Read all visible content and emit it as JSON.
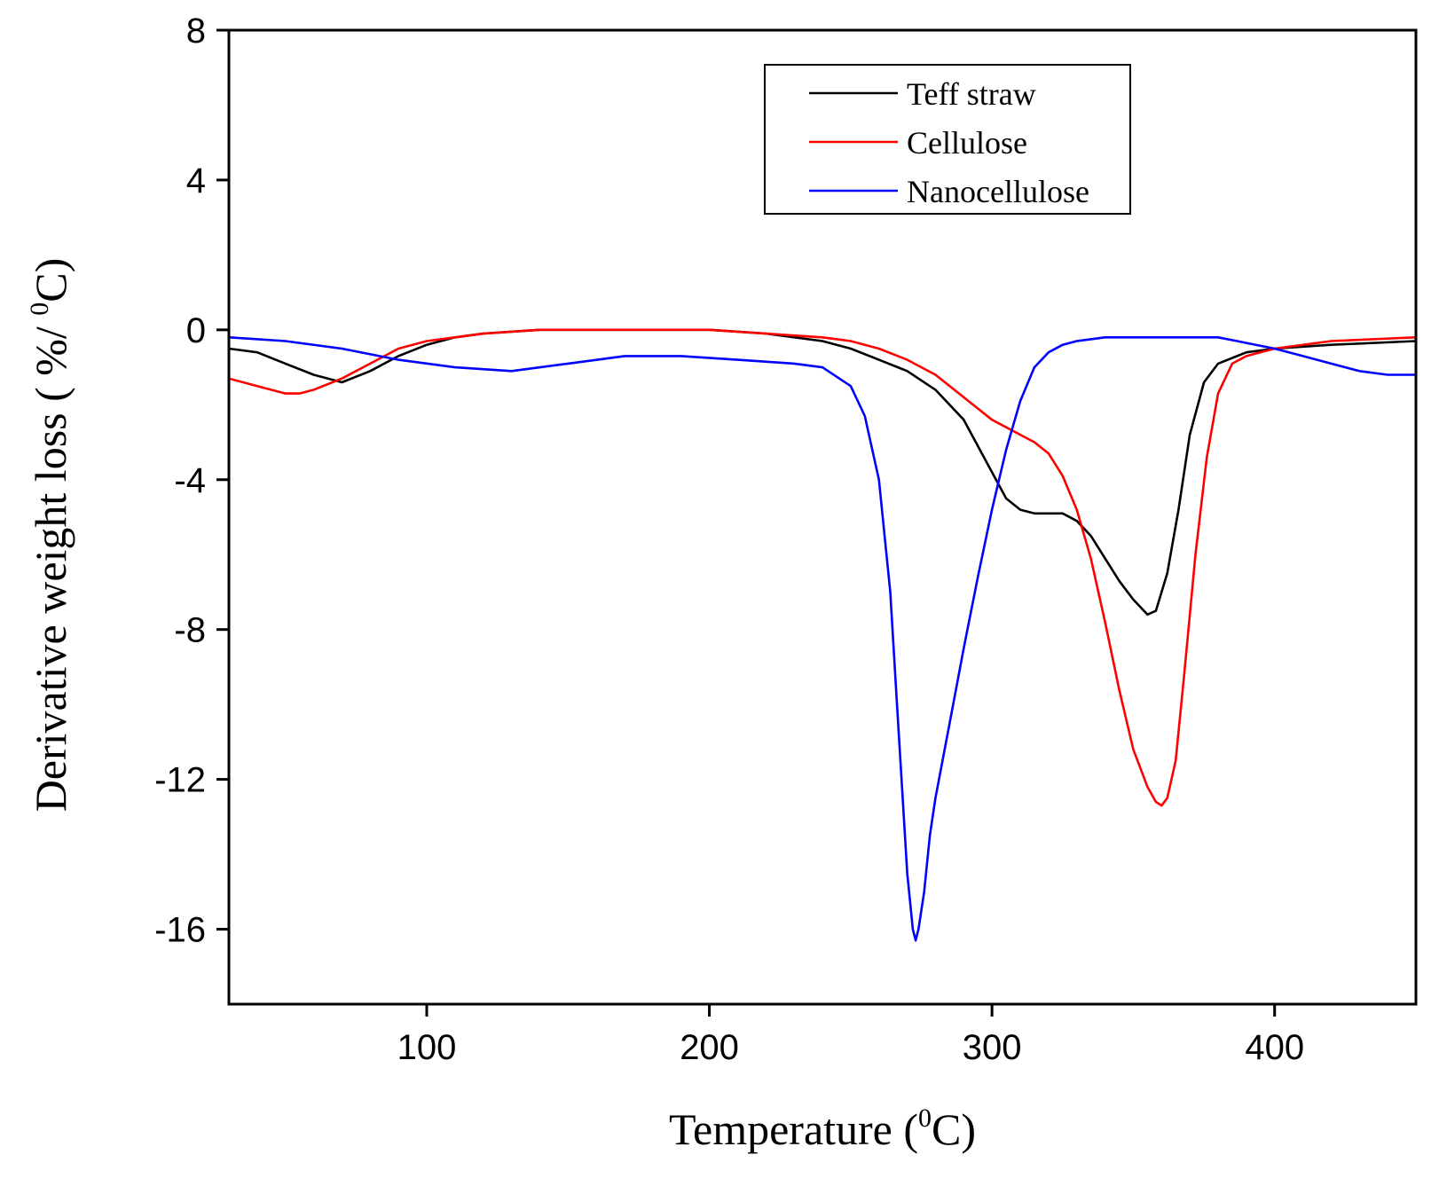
{
  "chart_data": {
    "type": "line",
    "title": "",
    "xlabel": {
      "prefix": "Temperature (",
      "sup": "0",
      "suffix": "C)"
    },
    "ylabel": {
      "prefix": "Derivative weight loss ( %/ ",
      "sup": "0",
      "suffix": "C)"
    },
    "xlim": [
      30,
      450
    ],
    "ylim": [
      -18,
      8
    ],
    "xticks": [
      100,
      200,
      300,
      400
    ],
    "yticks": [
      8,
      4,
      0,
      -4,
      -8,
      -12,
      -16
    ],
    "grid": false,
    "legend_position": "top-right",
    "series": [
      {
        "name": "Teff straw",
        "color": "#000000",
        "x": [
          30,
          40,
          50,
          60,
          70,
          80,
          90,
          100,
          110,
          120,
          140,
          160,
          180,
          200,
          220,
          240,
          250,
          260,
          270,
          280,
          290,
          295,
          300,
          305,
          310,
          315,
          320,
          325,
          330,
          335,
          340,
          345,
          350,
          355,
          358,
          362,
          366,
          370,
          375,
          380,
          390,
          400,
          420,
          450
        ],
        "values": [
          -0.5,
          -0.6,
          -0.9,
          -1.2,
          -1.4,
          -1.1,
          -0.7,
          -0.4,
          -0.2,
          -0.1,
          0.0,
          0.0,
          0.0,
          0.0,
          -0.1,
          -0.3,
          -0.5,
          -0.8,
          -1.1,
          -1.6,
          -2.4,
          -3.1,
          -3.8,
          -4.5,
          -4.8,
          -4.9,
          -4.9,
          -4.9,
          -5.1,
          -5.5,
          -6.1,
          -6.7,
          -7.2,
          -7.6,
          -7.5,
          -6.5,
          -4.8,
          -2.8,
          -1.4,
          -0.9,
          -0.6,
          -0.5,
          -0.4,
          -0.3
        ]
      },
      {
        "name": "Cellulose",
        "color": "#ff0000",
        "x": [
          30,
          40,
          50,
          55,
          60,
          70,
          80,
          90,
          100,
          110,
          120,
          140,
          160,
          180,
          200,
          220,
          240,
          250,
          260,
          270,
          280,
          290,
          300,
          310,
          315,
          320,
          325,
          330,
          335,
          340,
          345,
          350,
          355,
          358,
          360,
          362,
          365,
          368,
          372,
          376,
          380,
          385,
          390,
          400,
          420,
          450
        ],
        "values": [
          -1.3,
          -1.5,
          -1.7,
          -1.7,
          -1.6,
          -1.3,
          -0.9,
          -0.5,
          -0.3,
          -0.2,
          -0.1,
          0.0,
          0.0,
          0.0,
          0.0,
          -0.1,
          -0.2,
          -0.3,
          -0.5,
          -0.8,
          -1.2,
          -1.8,
          -2.4,
          -2.8,
          -3.0,
          -3.3,
          -3.9,
          -4.8,
          -6.1,
          -7.8,
          -9.6,
          -11.2,
          -12.2,
          -12.6,
          -12.7,
          -12.5,
          -11.5,
          -9.2,
          -6.0,
          -3.4,
          -1.7,
          -0.9,
          -0.7,
          -0.5,
          -0.3,
          -0.2
        ]
      },
      {
        "name": "Nanocellulose",
        "color": "#0000ff",
        "x": [
          30,
          50,
          70,
          90,
          110,
          130,
          150,
          170,
          190,
          210,
          230,
          240,
          250,
          255,
          260,
          264,
          266,
          268,
          270,
          272,
          273,
          274,
          276,
          278,
          280,
          285,
          290,
          295,
          300,
          305,
          310,
          315,
          320,
          325,
          330,
          335,
          340,
          350,
          360,
          370,
          380,
          390,
          400,
          410,
          420,
          430,
          440,
          450
        ],
        "values": [
          -0.2,
          -0.3,
          -0.5,
          -0.8,
          -1.0,
          -1.1,
          -0.9,
          -0.7,
          -0.7,
          -0.8,
          -0.9,
          -1.0,
          -1.5,
          -2.3,
          -4.0,
          -7.0,
          -9.5,
          -12.0,
          -14.5,
          -16.0,
          -16.3,
          -16.0,
          -15.0,
          -13.5,
          -12.5,
          -10.5,
          -8.5,
          -6.6,
          -4.8,
          -3.2,
          -1.9,
          -1.0,
          -0.6,
          -0.4,
          -0.3,
          -0.25,
          -0.2,
          -0.2,
          -0.2,
          -0.2,
          -0.2,
          -0.35,
          -0.5,
          -0.7,
          -0.9,
          -1.1,
          -1.2,
          -1.2
        ]
      }
    ]
  }
}
